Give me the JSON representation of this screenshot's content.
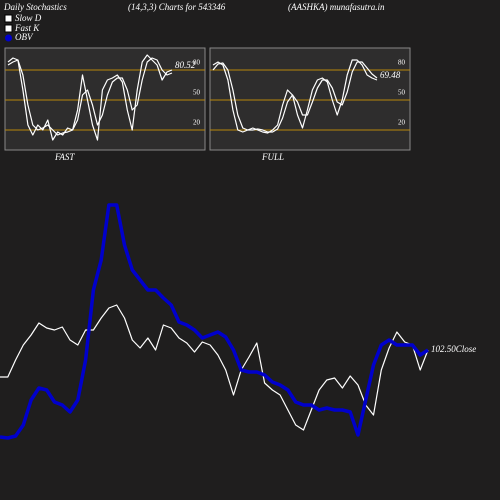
{
  "header": {
    "left": "Daily Stochastics",
    "center": "(14,3,3) Charts for 543346",
    "right": "(AASHKA) munafasutra.in"
  },
  "chart_data": [
    {
      "type": "line",
      "label": "FAST",
      "annotation": "80.52",
      "ylim": [
        0,
        100
      ],
      "yticks": [
        20,
        50,
        80
      ],
      "grid": true,
      "grid_color": "#b8860b",
      "series": [
        {
          "name": "Slow D",
          "color": "#ffffff",
          "values": [
            85,
            88,
            90,
            75,
            45,
            25,
            20,
            22,
            25,
            20,
            15,
            17,
            18,
            20,
            30,
            55,
            60,
            45,
            25,
            35,
            55,
            68,
            72,
            72,
            60,
            40,
            45,
            70,
            88,
            92,
            90,
            80,
            75,
            77
          ]
        },
        {
          "name": "Fast K",
          "color": "#ffffff",
          "values": [
            88,
            92,
            90,
            60,
            25,
            15,
            25,
            20,
            30,
            10,
            18,
            15,
            22,
            20,
            40,
            75,
            50,
            25,
            10,
            60,
            70,
            72,
            75,
            68,
            40,
            20,
            60,
            88,
            95,
            90,
            85,
            70,
            78,
            80
          ]
        }
      ]
    },
    {
      "type": "line",
      "label": "FULL",
      "annotation": "69.48",
      "ylim": [
        0,
        100
      ],
      "yticks": [
        20,
        50,
        80
      ],
      "grid": true,
      "grid_color": "#b8860b",
      "series": [
        {
          "color": "#ffffff",
          "values": [
            80,
            86,
            87,
            80,
            60,
            35,
            22,
            20,
            20,
            21,
            20,
            18,
            18,
            21,
            32,
            48,
            55,
            48,
            35,
            35,
            48,
            62,
            70,
            70,
            62,
            48,
            45,
            58,
            78,
            88,
            88,
            82,
            76,
            72
          ]
        },
        {
          "color": "#ffffff",
          "values": [
            85,
            88,
            85,
            70,
            40,
            20,
            18,
            20,
            22,
            20,
            18,
            17,
            20,
            25,
            45,
            60,
            55,
            35,
            22,
            40,
            60,
            70,
            72,
            68,
            50,
            35,
            50,
            75,
            90,
            90,
            85,
            75,
            72,
            70
          ]
        }
      ]
    },
    {
      "type": "line",
      "annotation": "102.50Close",
      "ylim": [
        0,
        300
      ],
      "series": [
        {
          "color": "#ffffff",
          "values": [
            123,
            123,
            140,
            155,
            165,
            177,
            172,
            170,
            173,
            160,
            155,
            170,
            170,
            182,
            192,
            195,
            182,
            160,
            152,
            162,
            150,
            175,
            172,
            162,
            157,
            148,
            158,
            155,
            145,
            130,
            105,
            130,
            143,
            157,
            117,
            110,
            105,
            90,
            75,
            70,
            90,
            110,
            120,
            122,
            112,
            124,
            115,
            95,
            85,
            130,
            152,
            168,
            158,
            155,
            130,
            150
          ]
        },
        {
          "name": "OBV",
          "color": "#0000cc",
          "values": [
            63,
            62,
            64,
            75,
            100,
            112,
            110,
            98,
            95,
            88,
            100,
            140,
            210,
            240,
            295,
            295,
            255,
            230,
            220,
            210,
            210,
            202,
            195,
            178,
            175,
            170,
            162,
            165,
            168,
            163,
            150,
            130,
            128,
            128,
            125,
            118,
            115,
            110,
            98,
            95,
            95,
            90,
            92,
            90,
            90,
            88,
            65,
            100,
            135,
            155,
            160,
            155,
            155,
            155,
            145,
            150
          ]
        }
      ]
    }
  ]
}
